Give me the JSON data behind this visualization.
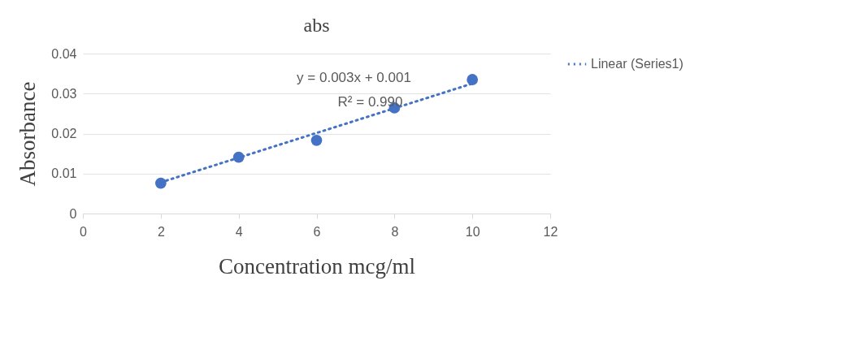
{
  "chart_data": {
    "type": "scatter",
    "title": "abs",
    "xlabel": "Concentration mcg/ml",
    "ylabel": "Absorbance",
    "x": [
      2,
      4,
      6,
      8,
      10
    ],
    "series": [
      {
        "color": "#4472c4",
        "marker": "circle",
        "values": [
          0.0076,
          0.0141,
          0.0183,
          0.0264,
          0.0335
        ]
      },
      {
        "type": "line",
        "name": "Linear (Series1)",
        "color": "#4472c4",
        "x": [
          2,
          10
        ],
        "values": [
          0.0078,
          0.0325
        ],
        "line_style": "dotted"
      }
    ],
    "xlim": [
      0,
      12
    ],
    "xticks": [
      0,
      2,
      4,
      6,
      8,
      10,
      12
    ],
    "ylim": [
      0,
      0.04
    ],
    "yticks": [
      0,
      0.01,
      0.02,
      0.03,
      0.04
    ],
    "annotations": [
      "y = 0.003x + 0.001",
      "R² = 0.990"
    ],
    "grid": "y",
    "legend": "right"
  }
}
